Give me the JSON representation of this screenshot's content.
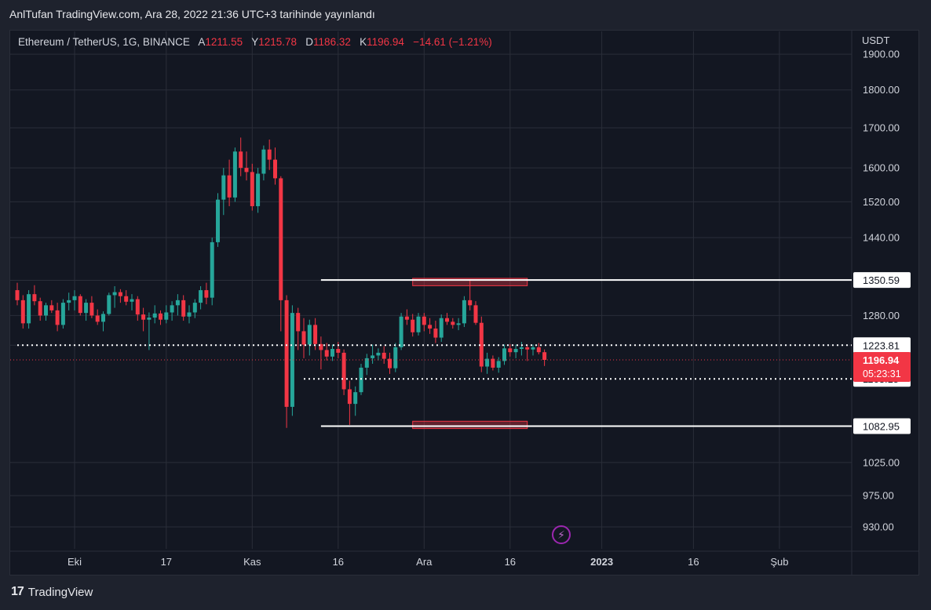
{
  "header": {
    "published_line": "AnlTufan TradingView.com, Ara 28, 2022 21:36 UTC+3 tarihinde yayınlandı"
  },
  "legend": {
    "symbol": "Ethereum / TetherUS, 1G, BINANCE",
    "open_key": "A",
    "open": "1211.55",
    "high_key": "Y",
    "high": "1215.78",
    "low_key": "D",
    "low": "1186.32",
    "close_key": "K",
    "close": "1196.94",
    "change": "−14.61 (−1.21%)"
  },
  "chart_data": {
    "type": "candlestick",
    "unit": "USDT",
    "ylim": [
      905,
      1955
    ],
    "y_axis_scale": "log",
    "y_ticks": [
      "1900.00",
      "1800.00",
      "1700.00",
      "1600.00",
      "1520.00",
      "1440.00",
      "1350.00",
      "1280.00",
      "1223.81",
      "1025.00",
      "975.00",
      "930.00"
    ],
    "x_ticks": [
      "Eki",
      "17",
      "Kas",
      "16",
      "Ara",
      "16",
      "2023",
      "16",
      "Şub"
    ],
    "x_tick_day_index": [
      0,
      16,
      31,
      46,
      61,
      76,
      92,
      108,
      123
    ],
    "first_candle_day_index": -10,
    "candles": [
      [
        1330,
        1345,
        1300,
        1310
      ],
      [
        1310,
        1320,
        1255,
        1265
      ],
      [
        1265,
        1330,
        1255,
        1322
      ],
      [
        1322,
        1340,
        1300,
        1308
      ],
      [
        1308,
        1315,
        1270,
        1280
      ],
      [
        1280,
        1305,
        1270,
        1300
      ],
      [
        1300,
        1310,
        1285,
        1290
      ],
      [
        1290,
        1305,
        1250,
        1262
      ],
      [
        1262,
        1312,
        1255,
        1305
      ],
      [
        1305,
        1325,
        1290,
        1310
      ],
      [
        1310,
        1330,
        1290,
        1318
      ],
      [
        1318,
        1322,
        1280,
        1285
      ],
      [
        1285,
        1312,
        1270,
        1305
      ],
      [
        1305,
        1318,
        1275,
        1280
      ],
      [
        1280,
        1292,
        1262,
        1268
      ],
      [
        1268,
        1288,
        1250,
        1283
      ],
      [
        1283,
        1325,
        1280,
        1320
      ],
      [
        1320,
        1338,
        1295,
        1326
      ],
      [
        1326,
        1332,
        1305,
        1318
      ],
      [
        1318,
        1330,
        1300,
        1307
      ],
      [
        1307,
        1322,
        1290,
        1312
      ],
      [
        1312,
        1318,
        1270,
        1282
      ],
      [
        1282,
        1295,
        1250,
        1272
      ],
      [
        1272,
        1286,
        1215,
        1276
      ],
      [
        1276,
        1300,
        1265,
        1284
      ],
      [
        1284,
        1290,
        1262,
        1272
      ],
      [
        1272,
        1300,
        1265,
        1286
      ],
      [
        1286,
        1308,
        1270,
        1300
      ],
      [
        1300,
        1322,
        1280,
        1310
      ],
      [
        1310,
        1320,
        1270,
        1278
      ],
      [
        1278,
        1300,
        1265,
        1286
      ],
      [
        1286,
        1312,
        1275,
        1305
      ],
      [
        1305,
        1338,
        1292,
        1330
      ],
      [
        1330,
        1345,
        1302,
        1315
      ],
      [
        1315,
        1440,
        1300,
        1430
      ],
      [
        1430,
        1540,
        1420,
        1525
      ],
      [
        1525,
        1600,
        1490,
        1582
      ],
      [
        1582,
        1620,
        1510,
        1530
      ],
      [
        1530,
        1650,
        1520,
        1640
      ],
      [
        1640,
        1675,
        1580,
        1600
      ],
      [
        1600,
        1640,
        1570,
        1590
      ],
      [
        1590,
        1610,
        1500,
        1510
      ],
      [
        1510,
        1600,
        1495,
        1586
      ],
      [
        1586,
        1655,
        1570,
        1645
      ],
      [
        1645,
        1670,
        1595,
        1620
      ],
      [
        1620,
        1650,
        1560,
        1575
      ],
      [
        1575,
        1580,
        1250,
        1310
      ],
      [
        1310,
        1320,
        1080,
        1115
      ],
      [
        1115,
        1300,
        1100,
        1285
      ],
      [
        1285,
        1295,
        1215,
        1250
      ],
      [
        1250,
        1275,
        1200,
        1225
      ],
      [
        1225,
        1272,
        1205,
        1262
      ],
      [
        1262,
        1275,
        1215,
        1226
      ],
      [
        1226,
        1240,
        1180,
        1215
      ],
      [
        1215,
        1228,
        1196,
        1203
      ],
      [
        1203,
        1225,
        1195,
        1217
      ],
      [
        1217,
        1230,
        1200,
        1210
      ],
      [
        1210,
        1216,
        1135,
        1145
      ],
      [
        1145,
        1160,
        1085,
        1120
      ],
      [
        1120,
        1150,
        1100,
        1140
      ],
      [
        1140,
        1190,
        1135,
        1183
      ],
      [
        1183,
        1208,
        1170,
        1200
      ],
      [
        1200,
        1225,
        1190,
        1205
      ],
      [
        1205,
        1218,
        1196,
        1210
      ],
      [
        1210,
        1222,
        1190,
        1199
      ],
      [
        1199,
        1210,
        1172,
        1182
      ],
      [
        1182,
        1228,
        1175,
        1220
      ],
      [
        1220,
        1285,
        1215,
        1278
      ],
      [
        1278,
        1292,
        1262,
        1272
      ],
      [
        1272,
        1283,
        1240,
        1248
      ],
      [
        1248,
        1285,
        1242,
        1278
      ],
      [
        1278,
        1285,
        1250,
        1262
      ],
      [
        1262,
        1275,
        1245,
        1255
      ],
      [
        1255,
        1270,
        1228,
        1238
      ],
      [
        1238,
        1282,
        1230,
        1275
      ],
      [
        1275,
        1285,
        1262,
        1268
      ],
      [
        1268,
        1275,
        1255,
        1262
      ],
      [
        1262,
        1275,
        1252,
        1265
      ],
      [
        1265,
        1318,
        1258,
        1310
      ],
      [
        1310,
        1352,
        1290,
        1300
      ],
      [
        1300,
        1308,
        1262,
        1266
      ],
      [
        1266,
        1278,
        1175,
        1185
      ],
      [
        1185,
        1210,
        1172,
        1199
      ],
      [
        1199,
        1205,
        1178,
        1183
      ],
      [
        1183,
        1202,
        1174,
        1195
      ],
      [
        1195,
        1225,
        1188,
        1218
      ],
      [
        1218,
        1226,
        1203,
        1211
      ],
      [
        1211,
        1225,
        1200,
        1217
      ],
      [
        1217,
        1230,
        1205,
        1220
      ],
      [
        1220,
        1225,
        1195,
        1216
      ],
      [
        1216,
        1225,
        1205,
        1220
      ],
      [
        1220,
        1228,
        1207,
        1211
      ],
      [
        1211,
        1216,
        1186,
        1197
      ]
    ],
    "horizontal_levels": [
      {
        "label": "1350.59",
        "value": 1350.59,
        "style": "solid",
        "from_day_index": 43
      },
      {
        "label": "1223.81",
        "value": 1223.81,
        "style": "dotted",
        "from_day_index": -10
      },
      {
        "label": "1163.15",
        "value": 1163.15,
        "style": "dotted",
        "from_day_index": 40
      },
      {
        "label": "1082.95",
        "value": 1082.95,
        "style": "solid",
        "from_day_index": 43
      }
    ],
    "zones": [
      {
        "from_day_index": 59,
        "to_day_index": 79,
        "low": 1339,
        "high": 1354
      },
      {
        "from_day_index": 59,
        "to_day_index": 79,
        "low": 1079,
        "high": 1091
      }
    ],
    "last_price": {
      "value": "1196.94",
      "countdown": "05:23:31"
    },
    "colors": {
      "up": "#26a69a",
      "down": "#f23645",
      "grid": "#2a2e39",
      "axis_text": "#d1d4dc",
      "background": "#131722"
    }
  },
  "footer": {
    "brand": "TradingView"
  }
}
